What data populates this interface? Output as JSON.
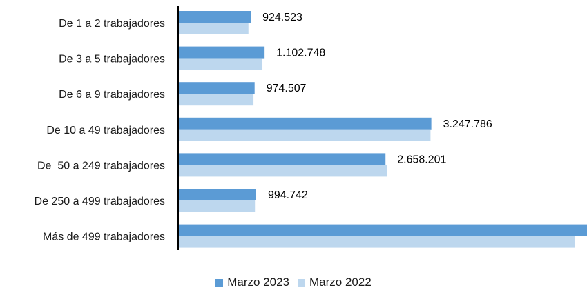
{
  "chart_data": {
    "type": "bar",
    "orientation": "horizontal",
    "categories": [
      "De 1 a 2 trabajadores",
      "De 3 a 5 trabajadores",
      "De 6 a 9 trabajadores",
      "De 10 a 49 trabajadores",
      "De  50 a 249 trabajadores",
      "De 250 a 499 trabajadores",
      "Más de 499 trabajadores"
    ],
    "series": [
      {
        "name": "Marzo 2023",
        "color": "#5b9bd5",
        "values": [
          924523,
          1102748,
          974507,
          3247786,
          2658201,
          994742,
          5250000
        ],
        "labels": [
          "924.523",
          "1.102.748",
          "974.507",
          "3.247.786",
          "2.658.201",
          "994.742",
          ""
        ]
      },
      {
        "name": "Marzo 2022",
        "color": "#bdd7ee",
        "values": [
          895000,
          1075000,
          960000,
          3237000,
          2679000,
          979000,
          5090000
        ]
      }
    ],
    "xlim": [
      0,
      5250000
    ],
    "grid": false,
    "legend_position": "bottom"
  }
}
